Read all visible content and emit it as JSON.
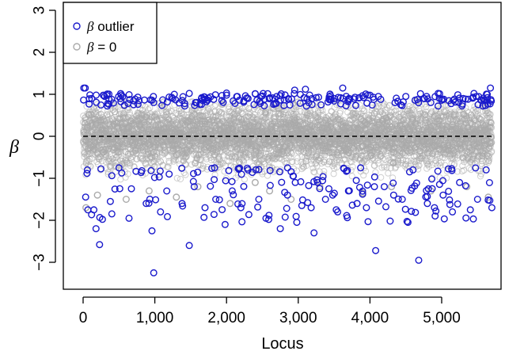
{
  "chart_data": {
    "type": "scatter",
    "title": "",
    "xlabel": "Locus",
    "ylabel": "β",
    "xlim": [
      -250,
      5900
    ],
    "ylim": [
      -3.55,
      3.15
    ],
    "x_ticks": [
      0,
      1000,
      2000,
      3000,
      4000,
      5000
    ],
    "x_tick_labels": [
      "0",
      "1,000",
      "2,000",
      "3,000",
      "4,000",
      "5,000"
    ],
    "y_ticks": [
      -3,
      -2,
      -1,
      0,
      1,
      2,
      3
    ],
    "y_tick_labels": [
      "−3",
      "−2",
      "−1",
      "0",
      "1",
      "2",
      "3"
    ],
    "reference_line": {
      "y": 0,
      "style": "dashed",
      "color": "#000000",
      "x_range": [
        0,
        5700
      ]
    },
    "legend": {
      "position": "top-left",
      "entries": [
        {
          "symbol": "β",
          "text": " outlier",
          "color": "#1a1acc"
        },
        {
          "symbol": "β",
          "text": " = 0",
          "color": "#aaaaaa"
        }
      ]
    },
    "grid": false,
    "n_loci": 5700,
    "series": [
      {
        "name": "β outlier",
        "color": "#1a1acc",
        "marker": "open-circle",
        "points": [
          [
            10,
            1.15
          ],
          [
            30,
            1.15
          ],
          [
            120,
            0.9
          ],
          [
            300,
            0.95
          ],
          [
            520,
            0.9
          ],
          [
            780,
            0.85
          ],
          [
            980,
            0.95
          ],
          [
            1250,
            0.9
          ],
          [
            1480,
            1.02
          ],
          [
            1650,
            0.9
          ],
          [
            1820,
            0.88
          ],
          [
            2000,
            1.03
          ],
          [
            2150,
            0.95
          ],
          [
            2300,
            0.9
          ],
          [
            2480,
            0.95
          ],
          [
            2700,
            0.95
          ],
          [
            2950,
            1.1
          ],
          [
            3100,
            1.12
          ],
          [
            3250,
            0.92
          ],
          [
            3450,
            0.88
          ],
          [
            3620,
            1.15
          ],
          [
            3850,
            0.92
          ],
          [
            4000,
            0.98
          ],
          [
            4150,
            0.88
          ],
          [
            4350,
            0.8
          ],
          [
            4500,
            0.95
          ],
          [
            4750,
            0.9
          ],
          [
            4950,
            1.02
          ],
          [
            5100,
            0.85
          ],
          [
            5300,
            0.9
          ],
          [
            5450,
            1.02
          ],
          [
            5600,
            0.85
          ],
          [
            5680,
            1.15
          ],
          [
            60,
            -0.8
          ],
          [
            150,
            -1.75
          ],
          [
            180,
            -2.2
          ],
          [
            230,
            -2.58
          ],
          [
            380,
            -1.55
          ],
          [
            500,
            -0.75
          ],
          [
            640,
            -1.95
          ],
          [
            880,
            -1.6
          ],
          [
            960,
            -2.25
          ],
          [
            985,
            -3.25
          ],
          [
            1080,
            -1.8
          ],
          [
            1200,
            -0.9
          ],
          [
            1380,
            -1.6
          ],
          [
            1480,
            -2.6
          ],
          [
            1550,
            -1.2
          ],
          [
            1700,
            -1.7
          ],
          [
            1850,
            -1.5
          ],
          [
            1980,
            -2.1
          ],
          [
            2080,
            -1.3
          ],
          [
            2200,
            -1.7
          ],
          [
            2300,
            -0.8
          ],
          [
            2450,
            -1.5
          ],
          [
            2550,
            -1.95
          ],
          [
            2750,
            -2.2
          ],
          [
            2850,
            -1.4
          ],
          [
            2980,
            -2.05
          ],
          [
            3050,
            -1.65
          ],
          [
            3180,
            -1.7
          ],
          [
            3220,
            -2.3
          ],
          [
            3380,
            -1.5
          ],
          [
            3480,
            -1.4
          ],
          [
            3550,
            -1.8
          ],
          [
            3700,
            -1.3
          ],
          [
            3820,
            -1.6
          ],
          [
            3950,
            -1.7
          ],
          [
            4080,
            -2.72
          ],
          [
            4200,
            -1.2
          ],
          [
            4330,
            -1.4
          ],
          [
            4450,
            -1.5
          ],
          [
            4530,
            -2.05
          ],
          [
            4600,
            -0.8
          ],
          [
            4680,
            -2.95
          ],
          [
            4800,
            -1.6
          ],
          [
            4900,
            -1.7
          ],
          [
            5020,
            -1.4
          ],
          [
            5150,
            -1.8
          ],
          [
            5250,
            -1.1
          ],
          [
            5400,
            -1.75
          ],
          [
            5500,
            -1.5
          ],
          [
            5620,
            -0.8
          ],
          [
            5700,
            -1.7
          ]
        ]
      },
      {
        "name": "β = 0",
        "color": "#aaaaaa",
        "marker": "open-circle",
        "points": [
          [
            40,
            -1.7
          ],
          [
            200,
            -1.4
          ],
          [
            600,
            -1.5
          ],
          [
            920,
            -1.3
          ],
          [
            1300,
            -1.45
          ],
          [
            1600,
            -1.2
          ],
          [
            2050,
            -1.6
          ],
          [
            2400,
            -1.1
          ],
          [
            2600,
            -1.3
          ],
          [
            2900,
            -1.5
          ],
          [
            3300,
            -1.2
          ],
          [
            3900,
            -1.35
          ],
          [
            4300,
            -1.2
          ],
          [
            4850,
            -1.3
          ],
          [
            5350,
            -1.2
          ],
          [
            5650,
            -1.45
          ]
        ]
      }
    ]
  }
}
